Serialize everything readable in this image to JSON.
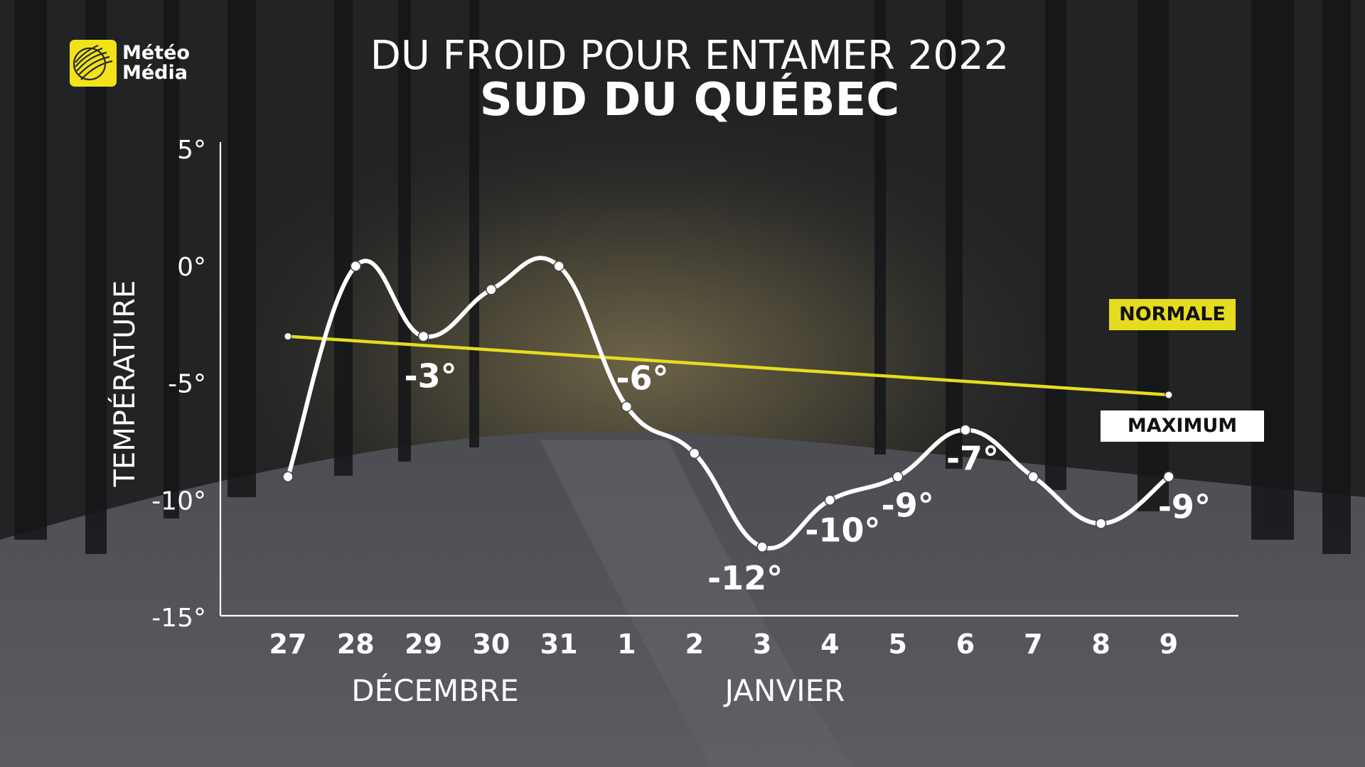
{
  "logo": {
    "line1": "Météo",
    "line2": "Média",
    "color": "#f2e21a"
  },
  "title": {
    "line1": "DU FROID POUR ENTAMER 2022",
    "line2": "SUD DU QUÉBEC"
  },
  "legend": {
    "normale": "NORMALE",
    "maximum": "MAXIMUM",
    "normale_color": "#e6dc1f",
    "maximum_color": "#ffffff"
  },
  "months": {
    "december": "DÉCEMBRE",
    "january": "JANVIER"
  },
  "chart_data": {
    "type": "line",
    "title": "DU FROID POUR ENTAMER 2022",
    "subtitle": "SUD DU QUÉBEC",
    "ylabel": "TEMPÉRATURE",
    "xlabel": "",
    "categories": [
      "27",
      "28",
      "29",
      "30",
      "31",
      "1",
      "2",
      "3",
      "4",
      "5",
      "6",
      "7",
      "8",
      "9"
    ],
    "ylim": [
      -15,
      5
    ],
    "yticks": [
      -15,
      -10,
      -5,
      0,
      5
    ],
    "ytick_labels": [
      "-15°",
      "-10°",
      "-5°",
      "0°",
      "5°"
    ],
    "grid": false,
    "series": [
      {
        "name": "MAXIMUM",
        "color": "#ffffff",
        "values": [
          -9,
          0,
          -3,
          -1,
          0,
          -6,
          -8,
          -12,
          -10,
          -9,
          -7,
          -9,
          -11,
          -9
        ]
      },
      {
        "name": "NORMALE",
        "color": "#e6dc1f",
        "start": -3,
        "end": -5.5
      }
    ],
    "data_labels": [
      {
        "index": 2,
        "text": "-3°"
      },
      {
        "index": 5,
        "text": "-6°"
      },
      {
        "index": 7,
        "text": "-12°"
      },
      {
        "index": 8,
        "text": "-10°"
      },
      {
        "index": 9,
        "text": "-9°"
      },
      {
        "index": 10,
        "text": "-7°"
      },
      {
        "index": 13,
        "text": "-9°"
      }
    ]
  }
}
